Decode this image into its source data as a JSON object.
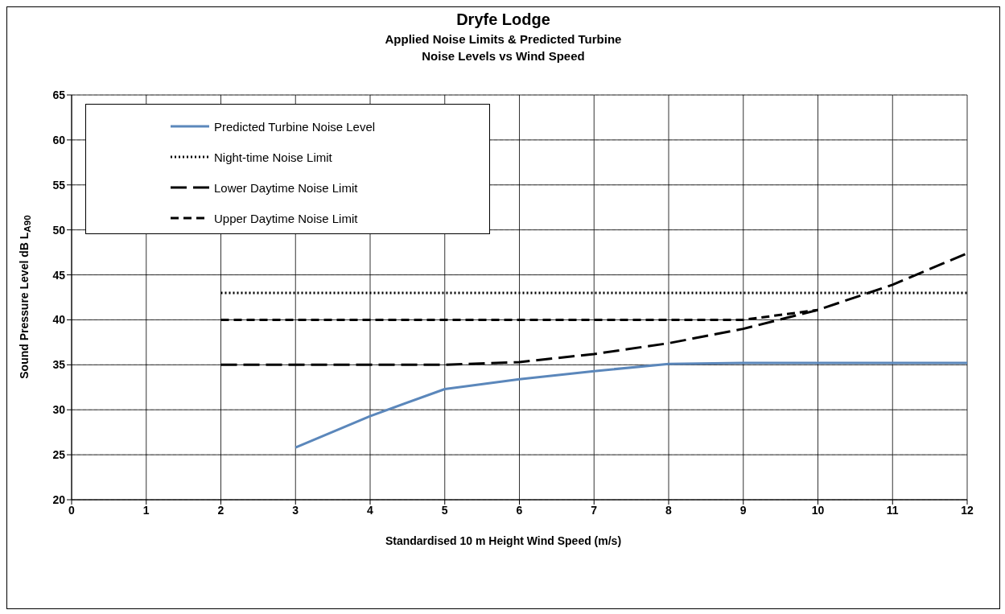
{
  "chart_data": {
    "type": "line",
    "title": "Dryfe Lodge",
    "subtitle": "Applied Noise Limits & Predicted Turbine Noise Levels vs Wind Speed",
    "xlabel": "Standardised 10 m Height Wind Speed (m/s)",
    "ylabel": "Sound Pressure Level dB L$_{A90}$",
    "series": [
      {
        "name": "Predicted Turbine Noise Level",
        "color": "#5b87bb",
        "line_style": "solid",
        "x": [
          3,
          4,
          5,
          6,
          7,
          8,
          9,
          10,
          11,
          12
        ],
        "values": [
          25.8,
          29.3,
          32.3,
          33.4,
          34.3,
          35.1,
          35.2,
          35.2,
          35.2,
          35.2
        ]
      },
      {
        "name": "Night-time Noise Limit",
        "color": "#000000",
        "line_style": "dotted",
        "x": [
          2,
          3,
          4,
          5,
          6,
          7,
          8,
          9,
          10,
          11,
          12
        ],
        "values": [
          43,
          43,
          43,
          43,
          43,
          43,
          43,
          43,
          43,
          43,
          43
        ]
      },
      {
        "name": "Lower Daytime Noise Limit",
        "color": "#000000",
        "line_style": "dashed",
        "x": [
          2,
          3,
          4,
          5,
          6,
          7,
          8,
          9,
          10,
          11,
          12
        ],
        "values": [
          35,
          35,
          35,
          35,
          35.3,
          36.2,
          37.4,
          39.0,
          41.1,
          43.9,
          47.4
        ]
      },
      {
        "name": "Upper Daytime Noise Limit",
        "color": "#000000",
        "line_style": "dashed",
        "x": [
          2,
          3,
          4,
          5,
          6,
          7,
          8,
          9,
          10
        ],
        "values": [
          40,
          40,
          40,
          40,
          40,
          40,
          40,
          40,
          41.1
        ]
      }
    ],
    "xlim": [
      0,
      12
    ],
    "xticks": [
      0,
      1,
      2,
      3,
      4,
      5,
      6,
      7,
      8,
      9,
      10,
      11,
      12
    ],
    "ylim": [
      20,
      65
    ],
    "yticks": [
      20,
      25,
      30,
      35,
      40,
      45,
      50,
      55,
      60,
      65
    ],
    "grid": true,
    "legend": "top left",
    "marker": "none"
  }
}
